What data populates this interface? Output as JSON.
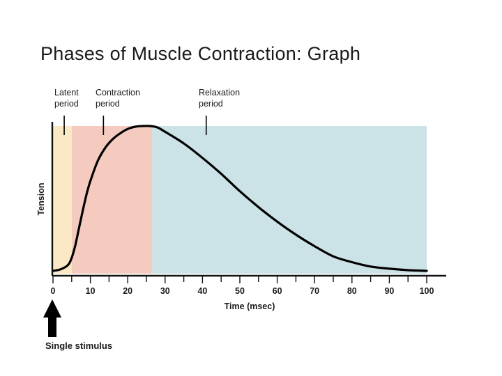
{
  "slide": {
    "title": "Phases of Muscle Contraction: Graph"
  },
  "chart_data": {
    "type": "line",
    "title": "",
    "xlabel": "Time (msec)",
    "ylabel": "Tension",
    "xlim": [
      0,
      100
    ],
    "x_ticks": [
      0,
      10,
      20,
      30,
      40,
      50,
      60,
      70,
      80,
      90,
      100
    ],
    "grid": false,
    "periods": [
      {
        "name": "Latent period",
        "label_lines": [
          "Latent",
          "period"
        ],
        "x_start": 0,
        "x_end": 5,
        "color": "#fbe9c6"
      },
      {
        "name": "Contraction period",
        "label_lines": [
          "Contraction",
          "period"
        ],
        "x_start": 5,
        "x_end": 26.5,
        "color": "#f5cbbf"
      },
      {
        "name": "Relaxation period",
        "label_lines": [
          "Relaxation",
          "period"
        ],
        "x_start": 26.5,
        "x_end": 100,
        "color": "#cbe2e6"
      }
    ],
    "series": [
      {
        "name": "",
        "x": [
          0,
          2,
          4,
          5,
          6,
          7,
          8,
          9,
          10,
          12,
          14,
          16,
          18,
          20,
          22,
          24,
          26,
          28,
          30,
          35,
          40,
          45,
          50,
          55,
          60,
          65,
          70,
          75,
          80,
          85,
          90,
          95,
          100
        ],
        "y": [
          0,
          0.01,
          0.04,
          0.09,
          0.18,
          0.3,
          0.42,
          0.53,
          0.62,
          0.76,
          0.85,
          0.91,
          0.95,
          0.98,
          0.995,
          1.0,
          1.0,
          0.99,
          0.96,
          0.88,
          0.78,
          0.67,
          0.55,
          0.44,
          0.34,
          0.25,
          0.17,
          0.1,
          0.06,
          0.03,
          0.015,
          0.005,
          0.0
        ]
      }
    ],
    "annotation": {
      "text": "Single stimulus",
      "x": 0
    }
  }
}
